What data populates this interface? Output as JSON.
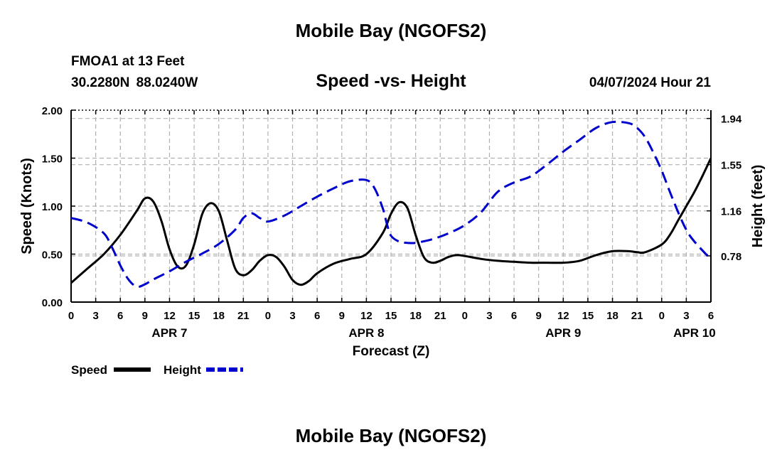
{
  "header": {
    "main_title": "Mobile Bay (NGOFS2)",
    "station": "FMOA1 at 13 Feet",
    "coordinates": "30.2280N  88.0240W",
    "subtitle": "Speed -vs- Height",
    "datetime": "04/07/2024 Hour 21"
  },
  "footer": {
    "title": "Mobile Bay (NGOFS2)"
  },
  "chart_data": {
    "type": "line",
    "title": "Speed -vs- Height",
    "xlabel": "Forecast (Z)",
    "ylabel": "Speed (Knots)",
    "y2label": "Height (feet)",
    "xlim": [
      0,
      78
    ],
    "ylim": [
      0,
      2.0
    ],
    "y2lim": [
      0.39,
      2.01
    ],
    "grid": true,
    "x_ticks": [
      0,
      3,
      6,
      9,
      12,
      15,
      18,
      21,
      24,
      27,
      30,
      33,
      36,
      39,
      42,
      45,
      48,
      51,
      54,
      57,
      60,
      63,
      66,
      69,
      72,
      75,
      78
    ],
    "x_tick_labels": [
      "0",
      "3",
      "6",
      "9",
      "12",
      "15",
      "18",
      "21",
      "0",
      "3",
      "6",
      "9",
      "12",
      "15",
      "18",
      "21",
      "0",
      "3",
      "6",
      "9",
      "12",
      "15",
      "18",
      "21",
      "0",
      "3",
      "6"
    ],
    "date_labels": [
      {
        "x": 12,
        "label": "APR 7"
      },
      {
        "x": 36,
        "label": "APR 8"
      },
      {
        "x": 60,
        "label": "APR 9"
      },
      {
        "x": 76,
        "label": "APR 10"
      }
    ],
    "y_ticks": [
      0.0,
      0.5,
      1.0,
      1.5,
      2.0
    ],
    "y_tick_labels": [
      "0.00",
      "0.50",
      "1.00",
      "1.50",
      "2.00"
    ],
    "y2_ticks": [
      0.78,
      1.16,
      1.55,
      1.94
    ],
    "y2_tick_labels": [
      "0.78",
      "1.16",
      "1.55",
      "1.94"
    ],
    "series": [
      {
        "name": "Speed",
        "axis": "left",
        "color": "#000000",
        "style": "solid",
        "x": [
          0,
          2,
          4,
          6,
          8,
          9,
          10,
          11,
          12,
          13,
          14,
          15,
          16,
          17,
          18,
          19,
          20,
          21,
          22,
          23,
          24,
          25,
          26,
          27,
          28,
          29,
          30,
          32,
          34,
          36,
          38,
          39,
          40,
          41,
          42,
          43,
          44,
          45,
          46,
          47,
          48,
          50,
          52,
          54,
          56,
          58,
          60,
          62,
          64,
          66,
          68,
          69,
          70,
          72,
          73,
          74,
          75,
          76,
          77,
          78
        ],
        "values": [
          0.2,
          0.35,
          0.5,
          0.7,
          0.95,
          1.08,
          1.05,
          0.85,
          0.55,
          0.37,
          0.38,
          0.6,
          0.92,
          1.03,
          0.95,
          0.65,
          0.35,
          0.28,
          0.33,
          0.43,
          0.49,
          0.47,
          0.37,
          0.23,
          0.18,
          0.22,
          0.3,
          0.4,
          0.45,
          0.5,
          0.72,
          0.92,
          1.04,
          0.98,
          0.7,
          0.47,
          0.41,
          0.43,
          0.47,
          0.49,
          0.48,
          0.45,
          0.43,
          0.42,
          0.41,
          0.41,
          0.41,
          0.43,
          0.49,
          0.53,
          0.53,
          0.52,
          0.52,
          0.6,
          0.7,
          0.85,
          1.0,
          1.15,
          1.32,
          1.5
        ]
      },
      {
        "name": "Height",
        "axis": "right",
        "color": "#0000cc",
        "style": "dashed",
        "x": [
          0,
          2,
          4,
          5,
          6,
          7,
          8,
          9,
          10,
          12,
          14,
          16,
          18,
          20,
          21,
          22,
          23,
          24,
          26,
          28,
          30,
          32,
          34,
          36,
          37,
          38,
          38.5,
          39,
          40,
          41,
          42,
          44,
          46,
          48,
          50,
          52,
          54,
          56,
          58,
          60,
          62,
          64,
          66,
          68,
          69,
          70,
          71,
          72,
          73,
          74,
          75,
          76,
          78
        ],
        "values": [
          1.1,
          1.06,
          0.97,
          0.85,
          0.7,
          0.58,
          0.52,
          0.54,
          0.58,
          0.65,
          0.73,
          0.8,
          0.88,
          1.0,
          1.1,
          1.14,
          1.1,
          1.07,
          1.12,
          1.2,
          1.28,
          1.35,
          1.41,
          1.42,
          1.35,
          1.18,
          1.05,
          0.95,
          0.9,
          0.89,
          0.89,
          0.92,
          0.97,
          1.04,
          1.15,
          1.32,
          1.4,
          1.45,
          1.55,
          1.66,
          1.76,
          1.86,
          1.91,
          1.9,
          1.86,
          1.78,
          1.65,
          1.5,
          1.32,
          1.15,
          1.0,
          0.9,
          0.75
        ]
      }
    ],
    "legend": [
      {
        "label": "Speed",
        "color": "#000000",
        "style": "solid"
      },
      {
        "label": "Height",
        "color": "#0000cc",
        "style": "dashed"
      }
    ],
    "legend_position": "bottom-left"
  }
}
